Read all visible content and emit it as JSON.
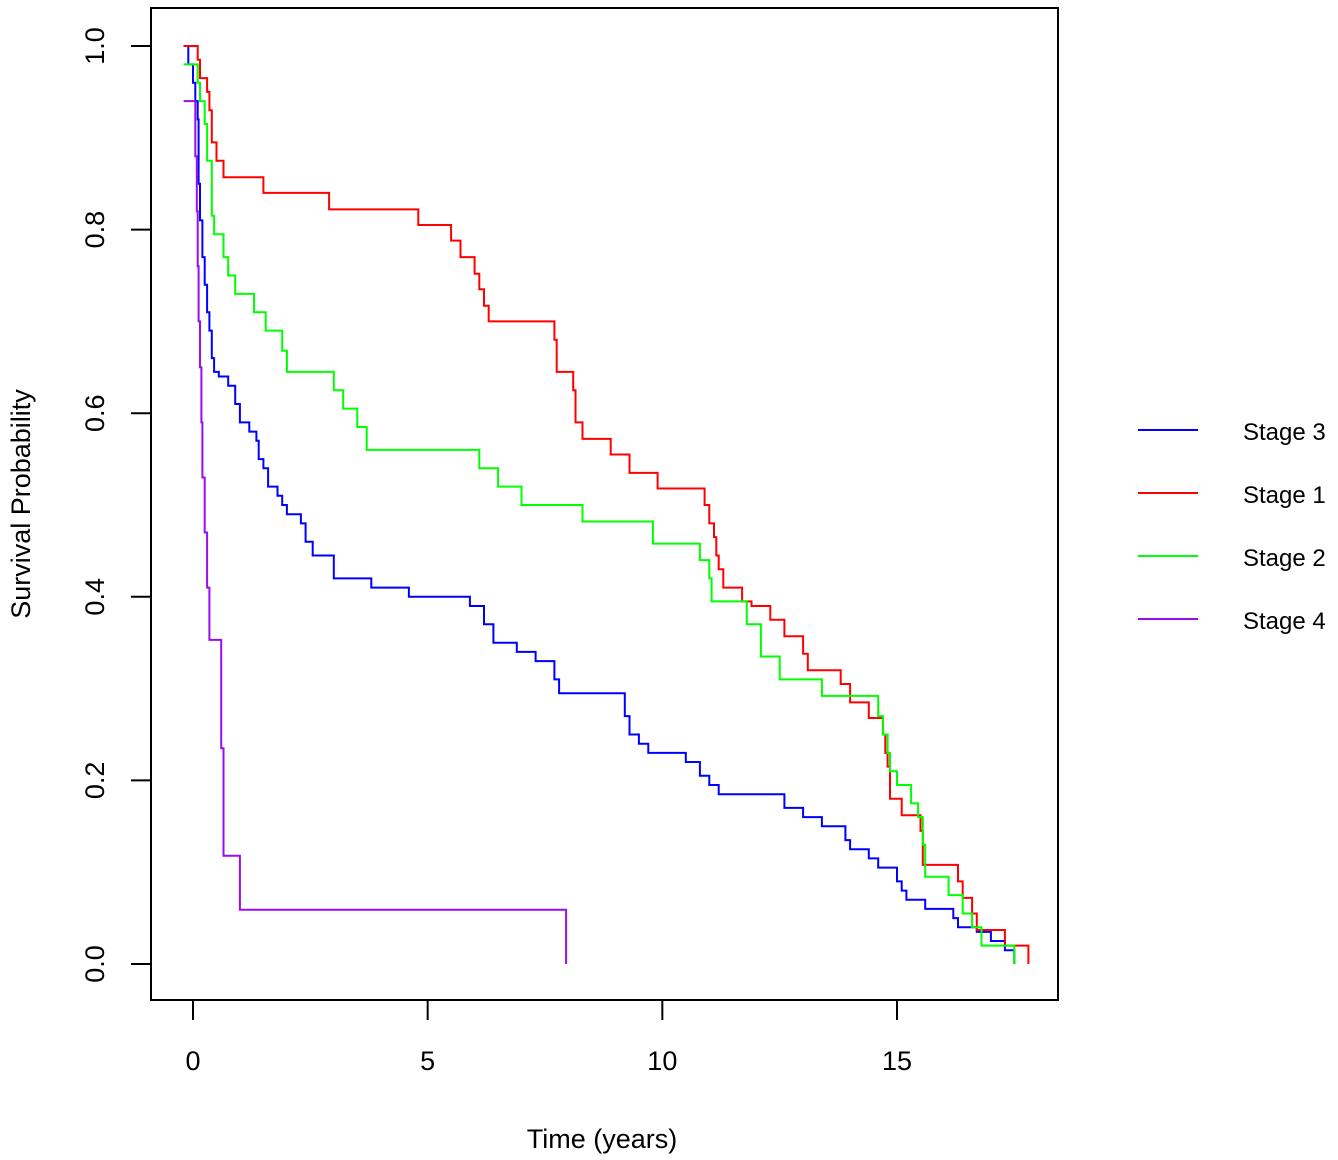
{
  "chart_data": {
    "type": "line",
    "subtype": "kaplan-meier-step",
    "title": "",
    "xlabel": "Time (years)",
    "ylabel": "Survival Probability",
    "xlim": [
      -0.8,
      18.5
    ],
    "ylim": [
      -0.04,
      1.04
    ],
    "x_ticks": [
      0,
      5,
      10,
      15
    ],
    "x_tick_labels": [
      "0",
      "5",
      "10",
      "15"
    ],
    "y_ticks": [
      0.0,
      0.2,
      0.4,
      0.6,
      0.8,
      1.0
    ],
    "y_tick_labels": [
      "0.0",
      "0.2",
      "0.4",
      "0.6",
      "0.8",
      "1.0"
    ],
    "grid": false,
    "legend": {
      "position": "right",
      "entries": [
        "Stage 3",
        "Stage 1",
        "Stage 2",
        "Stage 4"
      ]
    },
    "series": [
      {
        "name": "Stage 3",
        "color": "#0000ff",
        "points": [
          [
            -0.2,
            1.0
          ],
          [
            -0.1,
            0.98
          ],
          [
            0.0,
            0.96
          ],
          [
            0.05,
            0.94
          ],
          [
            0.1,
            0.92
          ],
          [
            0.12,
            0.85
          ],
          [
            0.15,
            0.81
          ],
          [
            0.2,
            0.77
          ],
          [
            0.25,
            0.74
          ],
          [
            0.3,
            0.71
          ],
          [
            0.35,
            0.69
          ],
          [
            0.4,
            0.66
          ],
          [
            0.45,
            0.645
          ],
          [
            0.55,
            0.64
          ],
          [
            0.75,
            0.63
          ],
          [
            0.9,
            0.61
          ],
          [
            1.0,
            0.59
          ],
          [
            1.2,
            0.58
          ],
          [
            1.35,
            0.57
          ],
          [
            1.4,
            0.55
          ],
          [
            1.5,
            0.54
          ],
          [
            1.6,
            0.52
          ],
          [
            1.8,
            0.51
          ],
          [
            1.9,
            0.5
          ],
          [
            2.0,
            0.49
          ],
          [
            2.3,
            0.48
          ],
          [
            2.4,
            0.46
          ],
          [
            2.55,
            0.445
          ],
          [
            3.0,
            0.42
          ],
          [
            3.8,
            0.41
          ],
          [
            4.6,
            0.4
          ],
          [
            5.9,
            0.39
          ],
          [
            6.2,
            0.37
          ],
          [
            6.4,
            0.35
          ],
          [
            6.9,
            0.34
          ],
          [
            7.3,
            0.33
          ],
          [
            7.7,
            0.31
          ],
          [
            7.8,
            0.295
          ],
          [
            9.2,
            0.27
          ],
          [
            9.3,
            0.25
          ],
          [
            9.5,
            0.24
          ],
          [
            9.7,
            0.23
          ],
          [
            10.5,
            0.22
          ],
          [
            10.8,
            0.205
          ],
          [
            11.0,
            0.195
          ],
          [
            11.2,
            0.185
          ],
          [
            12.6,
            0.17
          ],
          [
            13.0,
            0.16
          ],
          [
            13.4,
            0.15
          ],
          [
            13.9,
            0.135
          ],
          [
            14.0,
            0.125
          ],
          [
            14.4,
            0.115
          ],
          [
            14.6,
            0.105
          ],
          [
            15.0,
            0.09
          ],
          [
            15.1,
            0.08
          ],
          [
            15.2,
            0.07
          ],
          [
            15.6,
            0.06
          ],
          [
            16.2,
            0.05
          ],
          [
            16.3,
            0.04
          ],
          [
            16.7,
            0.035
          ],
          [
            17.0,
            0.025
          ],
          [
            17.3,
            0.015
          ],
          [
            17.5,
            0.0
          ]
        ]
      },
      {
        "name": "Stage 1",
        "color": "#ff0000",
        "points": [
          [
            -0.2,
            1.0
          ],
          [
            0.1,
            0.985
          ],
          [
            0.15,
            0.965
          ],
          [
            0.3,
            0.95
          ],
          [
            0.35,
            0.93
          ],
          [
            0.4,
            0.895
          ],
          [
            0.5,
            0.875
          ],
          [
            0.65,
            0.857
          ],
          [
            1.5,
            0.84
          ],
          [
            2.9,
            0.822
          ],
          [
            4.8,
            0.805
          ],
          [
            5.5,
            0.788
          ],
          [
            5.7,
            0.77
          ],
          [
            6.0,
            0.752
          ],
          [
            6.1,
            0.735
          ],
          [
            6.2,
            0.717
          ],
          [
            6.3,
            0.7
          ],
          [
            7.7,
            0.68
          ],
          [
            7.75,
            0.645
          ],
          [
            8.1,
            0.625
          ],
          [
            8.15,
            0.59
          ],
          [
            8.3,
            0.572
          ],
          [
            8.9,
            0.555
          ],
          [
            9.3,
            0.535
          ],
          [
            9.9,
            0.518
          ],
          [
            10.9,
            0.5
          ],
          [
            11.0,
            0.48
          ],
          [
            11.1,
            0.465
          ],
          [
            11.15,
            0.445
          ],
          [
            11.2,
            0.43
          ],
          [
            11.3,
            0.41
          ],
          [
            11.7,
            0.395
          ],
          [
            11.9,
            0.39
          ],
          [
            12.3,
            0.375
          ],
          [
            12.6,
            0.357
          ],
          [
            13.0,
            0.338
          ],
          [
            13.1,
            0.32
          ],
          [
            13.8,
            0.305
          ],
          [
            14.0,
            0.285
          ],
          [
            14.4,
            0.268
          ],
          [
            14.7,
            0.25
          ],
          [
            14.75,
            0.23
          ],
          [
            14.8,
            0.215
          ],
          [
            14.85,
            0.18
          ],
          [
            15.1,
            0.162
          ],
          [
            15.5,
            0.145
          ],
          [
            15.55,
            0.108
          ],
          [
            16.3,
            0.09
          ],
          [
            16.4,
            0.072
          ],
          [
            16.6,
            0.055
          ],
          [
            16.7,
            0.037
          ],
          [
            17.3,
            0.02
          ],
          [
            17.8,
            0.0
          ]
        ]
      },
      {
        "name": "Stage 2",
        "color": "#00ff00",
        "points": [
          [
            -0.2,
            0.98
          ],
          [
            0.1,
            0.96
          ],
          [
            0.15,
            0.94
          ],
          [
            0.25,
            0.915
          ],
          [
            0.3,
            0.875
          ],
          [
            0.4,
            0.815
          ],
          [
            0.45,
            0.795
          ],
          [
            0.65,
            0.77
          ],
          [
            0.75,
            0.75
          ],
          [
            0.9,
            0.73
          ],
          [
            1.3,
            0.71
          ],
          [
            1.55,
            0.69
          ],
          [
            1.9,
            0.668
          ],
          [
            2.0,
            0.645
          ],
          [
            3.0,
            0.625
          ],
          [
            3.2,
            0.605
          ],
          [
            3.5,
            0.585
          ],
          [
            3.7,
            0.56
          ],
          [
            6.1,
            0.54
          ],
          [
            6.5,
            0.52
          ],
          [
            7.0,
            0.5
          ],
          [
            8.3,
            0.482
          ],
          [
            9.8,
            0.458
          ],
          [
            10.8,
            0.44
          ],
          [
            11.0,
            0.42
          ],
          [
            11.05,
            0.395
          ],
          [
            11.8,
            0.37
          ],
          [
            12.1,
            0.335
          ],
          [
            12.5,
            0.31
          ],
          [
            13.4,
            0.292
          ],
          [
            14.6,
            0.27
          ],
          [
            14.7,
            0.25
          ],
          [
            14.8,
            0.23
          ],
          [
            14.85,
            0.21
          ],
          [
            15.0,
            0.195
          ],
          [
            15.3,
            0.175
          ],
          [
            15.45,
            0.16
          ],
          [
            15.55,
            0.13
          ],
          [
            15.6,
            0.095
          ],
          [
            16.1,
            0.075
          ],
          [
            16.4,
            0.055
          ],
          [
            16.6,
            0.04
          ],
          [
            16.8,
            0.02
          ],
          [
            17.5,
            0.0
          ]
        ]
      },
      {
        "name": "Stage 4",
        "color": "#9a0eea",
        "points": [
          [
            -0.2,
            0.94
          ],
          [
            0.05,
            0.88
          ],
          [
            0.08,
            0.82
          ],
          [
            0.1,
            0.76
          ],
          [
            0.12,
            0.7
          ],
          [
            0.15,
            0.65
          ],
          [
            0.18,
            0.59
          ],
          [
            0.2,
            0.53
          ],
          [
            0.25,
            0.47
          ],
          [
            0.3,
            0.41
          ],
          [
            0.35,
            0.353
          ],
          [
            0.6,
            0.235
          ],
          [
            0.65,
            0.118
          ],
          [
            1.0,
            0.059
          ],
          [
            7.95,
            0.0
          ]
        ]
      }
    ]
  }
}
